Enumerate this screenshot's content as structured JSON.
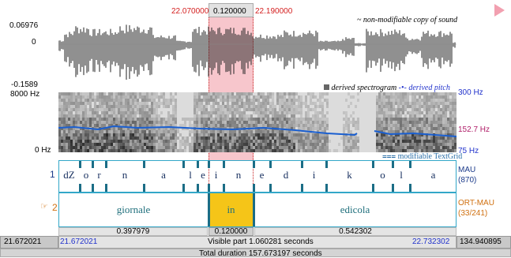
{
  "selection": {
    "start": "22.070000",
    "duration": "0.120000",
    "end": "22.190000"
  },
  "sound": {
    "label": "non-modifiable copy of sound",
    "label_prefix": "~",
    "y_max": "0.06976",
    "y_zero": "0",
    "y_min": "-0.1589"
  },
  "spectrogram": {
    "label": "derived spectrogram",
    "pitch_label": "derived pitch",
    "freq_max": "8000 Hz",
    "freq_min": "0 Hz",
    "pitch_max": "300 Hz",
    "pitch_current": "152.7 Hz",
    "pitch_min": "75 Hz"
  },
  "textgrid": {
    "label": "modifiable TextGrid",
    "tier1": {
      "number": "1",
      "name": "MAU",
      "count": "(870)",
      "segments": [
        "dZ",
        "o",
        "r",
        "n",
        "a",
        "l",
        "e",
        "i",
        "n",
        "e",
        "d",
        "i",
        "k",
        "o",
        "l",
        "a"
      ]
    },
    "tier2": {
      "number": "2",
      "name": "ORT-MAU",
      "count": "(33/241)",
      "segments": [
        "giornale",
        "in",
        "edicola"
      ]
    }
  },
  "durations": {
    "left": "0.397979",
    "selected": "0.120000",
    "right": "0.542302"
  },
  "visible_bar": {
    "window_start": "21.672021",
    "visible_start": "21.672021",
    "visible_label": "Visible part 1.060281 seconds",
    "visible_end": "22.732302",
    "window_end": "134.940895"
  },
  "total_bar": {
    "label": "Total duration 157.673197 seconds"
  },
  "colors": {
    "selection": "#f7c6cc",
    "selected_interval": "#f5c518",
    "tier_border": "#33a7c8",
    "boundary": "#1b6d86",
    "pitch": "#1a5fd0"
  }
}
